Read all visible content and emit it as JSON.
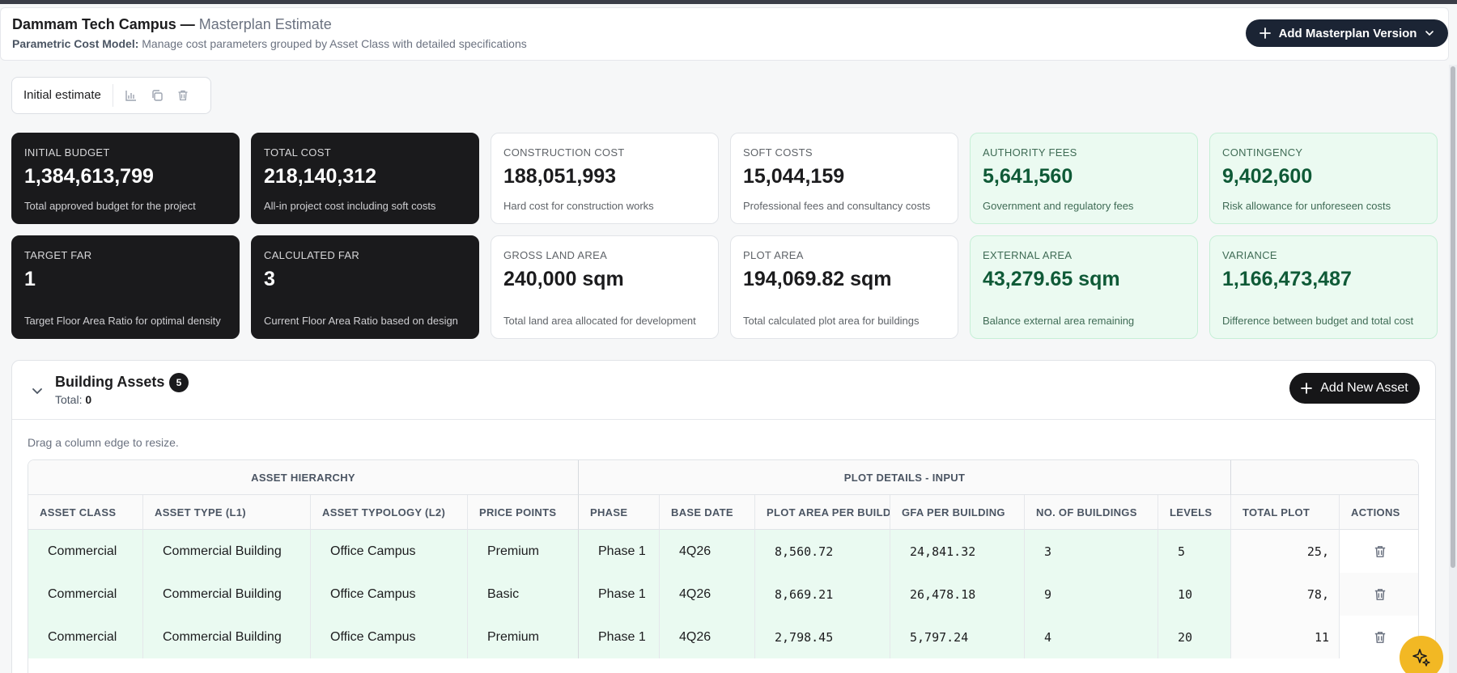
{
  "header": {
    "project": "Dammam Tech Campus —",
    "page": "Masterplan Estimate",
    "subtitle_bold": "Parametric Cost Model:",
    "subtitle": "Manage cost parameters grouped by Asset Class with detailed specifications",
    "add_version_label": "Add Masterplan Version"
  },
  "version": {
    "label": "Initial estimate",
    "icons": [
      "bar-chart-icon",
      "copy-icon",
      "trash-icon"
    ]
  },
  "cards": [
    {
      "label": "INITIAL BUDGET",
      "value": "1,384,613,799",
      "desc": "Total approved budget for the project",
      "style": "dark"
    },
    {
      "label": "TOTAL COST",
      "value": "218,140,312",
      "desc": "All-in project cost including soft costs",
      "style": "dark"
    },
    {
      "label": "CONSTRUCTION COST",
      "value": "188,051,993",
      "desc": "Hard cost for construction works",
      "style": "light"
    },
    {
      "label": "SOFT COSTS",
      "value": "15,044,159",
      "desc": "Professional fees and consultancy costs",
      "style": "light"
    },
    {
      "label": "AUTHORITY FEES",
      "value": "5,641,560",
      "desc": "Government and regulatory fees",
      "style": "green"
    },
    {
      "label": "CONTINGENCY",
      "value": "9,402,600",
      "desc": "Risk allowance for unforeseen costs",
      "style": "green"
    },
    {
      "label": "TARGET FAR",
      "value": "1",
      "desc": "Target Floor Area Ratio for optimal density",
      "style": "dark"
    },
    {
      "label": "CALCULATED FAR",
      "value": "3",
      "desc": "Current Floor Area Ratio based on design",
      "style": "dark"
    },
    {
      "label": "GROSS LAND AREA",
      "value": "240,000 sqm",
      "desc": "Total land area allocated for development",
      "style": "light"
    },
    {
      "label": "PLOT AREA",
      "value": "194,069.82 sqm",
      "desc": "Total calculated plot area for buildings",
      "style": "light"
    },
    {
      "label": "EXTERNAL AREA",
      "value": "43,279.65 sqm",
      "desc": "Balance external area remaining",
      "style": "green"
    },
    {
      "label": "VARIANCE",
      "value": "1,166,473,487",
      "desc": "Difference between budget and total cost",
      "style": "green"
    }
  ],
  "assets": {
    "title": "Building Assets",
    "count": "5",
    "total_label": "Total:",
    "total_value": "0",
    "add_label": "Add New Asset",
    "hint": "Drag a column edge to resize.",
    "groups": [
      "ASSET HIERARCHY",
      "PLOT DETAILS - INPUT"
    ],
    "columns": [
      "ASSET CLASS",
      "ASSET TYPE (L1)",
      "ASSET TYPOLOGY (L2)",
      "PRICE POINTS",
      "PHASE",
      "BASE DATE",
      "PLOT AREA PER BUILDING",
      "GFA PER BUILDING",
      "NO. OF BUILDINGS",
      "LEVELS",
      "TOTAL PLOT",
      "ACTIONS"
    ],
    "rows": [
      [
        "Commercial",
        "Commercial Building",
        "Office Campus",
        "Premium",
        "Phase 1",
        "4Q26",
        "8,560.72",
        "24,841.32",
        "3",
        "5",
        "25,"
      ],
      [
        "Commercial",
        "Commercial Building",
        "Office Campus",
        "Basic",
        "Phase 1",
        "4Q26",
        "8,669.21",
        "26,478.18",
        "9",
        "10",
        "78,"
      ],
      [
        "Commercial",
        "Commercial Building",
        "Office Campus",
        "Premium",
        "Phase 1",
        "4Q26",
        "2,798.45",
        "5,797.24",
        "4",
        "20",
        "11"
      ]
    ]
  },
  "colors": {
    "dark": "#1a1a1c",
    "green_bg": "#ebfaf1",
    "green_text": "#0f5a37",
    "navy": "#1b2434",
    "fab": "#f2b824"
  }
}
